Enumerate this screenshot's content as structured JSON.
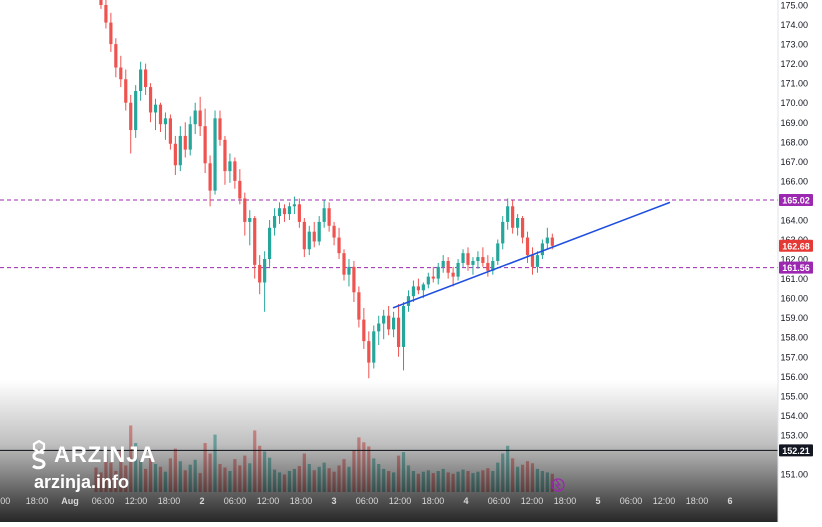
{
  "brand": {
    "name": "ARZINJA",
    "url": "arzinja.info",
    "logo_icon": "dollar-s-logo-icon"
  },
  "colors": {
    "up": "#26a69a",
    "down": "#ef5350",
    "trendline": "#1f4fe0",
    "resistance": "#9c27b0",
    "price_badge": "#e53935",
    "black_line": "#131722",
    "fade_bottom": "#5a5a5a"
  },
  "chart_data": {
    "type": "candlestick",
    "title": "",
    "xlabel": "",
    "ylabel": "",
    "ylim": [
      150.6,
      175.3
    ],
    "y_ticks": [
      "175.00",
      "174.00",
      "173.00",
      "172.00",
      "171.00",
      "170.00",
      "169.00",
      "168.00",
      "167.00",
      "166.00",
      "164.00",
      "163.00",
      "162.00",
      "161.00",
      "160.00",
      "159.00",
      "158.00",
      "157.00",
      "156.00",
      "155.00",
      "154.00",
      "153.00",
      "151.00"
    ],
    "x_ticks": [
      ":00",
      "18:00",
      "Aug",
      "06:00",
      "12:00",
      "18:00",
      "2",
      "06:00",
      "12:00",
      "18:00",
      "3",
      "06:00",
      "12:00",
      "18:00",
      "4",
      "06:00",
      "12:00",
      "18:00",
      "5",
      "06:00",
      "12:00",
      "18:00",
      "6"
    ],
    "price_labels": [
      {
        "text": "165.02",
        "value": 165.02,
        "color": "#9c27b0"
      },
      {
        "text": "162.68",
        "value": 162.68,
        "color": "#e53935"
      },
      {
        "text": "161.56",
        "value": 161.56,
        "color": "#9c27b0"
      },
      {
        "text": "152.21",
        "value": 152.21,
        "color": "#131722"
      }
    ],
    "horizontal_lines": [
      {
        "value": 165.02,
        "style": "dashed",
        "color": "#9c27b0"
      },
      {
        "value": 161.56,
        "style": "dashed",
        "color": "#9c27b0"
      },
      {
        "value": 152.21,
        "style": "solid",
        "color": "#131722"
      }
    ],
    "trendline": {
      "from": {
        "x": "3 06:00",
        "y": 159.5
      },
      "to": {
        "x": "5 00:00",
        "y": 164.9
      }
    },
    "ohlc": [
      [
        176.0,
        176.4,
        175.5,
        175.9
      ],
      [
        175.9,
        176.0,
        174.8,
        175.0
      ],
      [
        175.0,
        175.4,
        173.8,
        174.1
      ],
      [
        174.1,
        174.6,
        172.6,
        173.0
      ],
      [
        173.0,
        173.3,
        171.3,
        171.8
      ],
      [
        171.8,
        172.4,
        170.8,
        171.2
      ],
      [
        171.2,
        171.7,
        169.6,
        170.0
      ],
      [
        170.0,
        170.4,
        167.4,
        168.6
      ],
      [
        168.6,
        170.9,
        168.2,
        170.6
      ],
      [
        170.6,
        172.1,
        170.1,
        171.7
      ],
      [
        171.7,
        172.0,
        170.4,
        170.8
      ],
      [
        170.8,
        171.0,
        169.0,
        169.5
      ],
      [
        169.5,
        170.2,
        168.6,
        169.9
      ],
      [
        169.9,
        170.0,
        168.5,
        168.9
      ],
      [
        168.9,
        169.5,
        168.1,
        169.2
      ],
      [
        169.2,
        169.4,
        167.6,
        167.9
      ],
      [
        167.9,
        168.3,
        166.3,
        166.8
      ],
      [
        166.8,
        168.8,
        166.5,
        168.3
      ],
      [
        168.3,
        169.0,
        167.2,
        167.6
      ],
      [
        167.6,
        169.3,
        167.3,
        168.9
      ],
      [
        168.9,
        170.0,
        168.4,
        169.6
      ],
      [
        169.6,
        170.3,
        168.3,
        168.8
      ],
      [
        168.8,
        169.7,
        166.4,
        166.9
      ],
      [
        166.9,
        167.3,
        164.7,
        165.5
      ],
      [
        165.5,
        169.6,
        165.3,
        169.2
      ],
      [
        169.2,
        169.6,
        167.8,
        168.1
      ],
      [
        168.1,
        168.3,
        165.8,
        166.5
      ],
      [
        166.5,
        167.4,
        165.9,
        167.0
      ],
      [
        167.0,
        167.2,
        165.6,
        166.0
      ],
      [
        166.0,
        166.6,
        164.8,
        165.1
      ],
      [
        165.1,
        165.4,
        163.2,
        163.9
      ],
      [
        163.9,
        164.5,
        162.7,
        164.1
      ],
      [
        164.1,
        164.2,
        161.0,
        161.7
      ],
      [
        161.7,
        162.2,
        160.2,
        160.8
      ],
      [
        160.8,
        162.4,
        159.3,
        162.0
      ],
      [
        162.0,
        164.0,
        161.6,
        163.6
      ],
      [
        163.6,
        164.6,
        163.2,
        164.2
      ],
      [
        164.2,
        164.9,
        163.8,
        164.6
      ],
      [
        164.6,
        164.8,
        163.9,
        164.3
      ],
      [
        164.3,
        164.9,
        164.0,
        164.7
      ],
      [
        164.7,
        165.2,
        164.3,
        164.8
      ],
      [
        164.8,
        165.1,
        163.6,
        163.9
      ],
      [
        163.9,
        164.1,
        162.1,
        162.5
      ],
      [
        162.5,
        163.7,
        162.2,
        163.4
      ],
      [
        163.4,
        163.9,
        162.6,
        162.9
      ],
      [
        162.9,
        164.2,
        162.7,
        163.9
      ],
      [
        163.9,
        165.0,
        163.6,
        164.6
      ],
      [
        164.6,
        164.9,
        163.4,
        163.7
      ],
      [
        163.7,
        163.9,
        162.7,
        163.1
      ],
      [
        163.1,
        163.6,
        162.0,
        162.3
      ],
      [
        162.3,
        162.5,
        160.9,
        161.2
      ],
      [
        161.2,
        162.0,
        160.6,
        161.6
      ],
      [
        161.6,
        161.9,
        159.8,
        160.3
      ],
      [
        160.3,
        160.6,
        158.5,
        158.9
      ],
      [
        158.9,
        159.5,
        157.4,
        157.8
      ],
      [
        157.8,
        158.3,
        155.9,
        156.7
      ],
      [
        156.7,
        158.6,
        156.4,
        158.3
      ],
      [
        158.3,
        159.1,
        157.6,
        158.7
      ],
      [
        158.7,
        159.4,
        157.9,
        159.1
      ],
      [
        159.1,
        159.6,
        158.1,
        158.4
      ],
      [
        158.4,
        159.3,
        158.0,
        159.0
      ],
      [
        159.0,
        159.7,
        157.0,
        157.5
      ],
      [
        157.5,
        159.8,
        156.3,
        159.6
      ],
      [
        159.6,
        160.4,
        159.3,
        160.1
      ],
      [
        160.1,
        160.9,
        159.8,
        160.6
      ],
      [
        160.6,
        161.0,
        160.2,
        160.4
      ],
      [
        160.4,
        160.8,
        160.0,
        160.7
      ],
      [
        160.7,
        161.3,
        160.5,
        161.1
      ],
      [
        161.1,
        161.6,
        160.8,
        161.0
      ],
      [
        161.0,
        161.8,
        160.7,
        161.6
      ],
      [
        161.6,
        162.2,
        161.3,
        161.9
      ],
      [
        161.9,
        162.1,
        161.0,
        161.3
      ],
      [
        161.3,
        161.6,
        160.6,
        161.1
      ],
      [
        161.1,
        162.0,
        160.9,
        161.8
      ],
      [
        161.8,
        162.5,
        161.6,
        162.3
      ],
      [
        162.3,
        162.6,
        161.4,
        161.7
      ],
      [
        161.7,
        162.1,
        161.2,
        161.9
      ],
      [
        161.9,
        162.4,
        161.5,
        162.1
      ],
      [
        162.1,
        162.6,
        161.6,
        161.8
      ],
      [
        161.8,
        162.2,
        161.1,
        161.4
      ],
      [
        161.4,
        162.1,
        161.2,
        161.9
      ],
      [
        161.9,
        163.0,
        161.7,
        162.8
      ],
      [
        162.8,
        164.2,
        162.5,
        163.9
      ],
      [
        163.9,
        165.1,
        163.5,
        164.7
      ],
      [
        164.7,
        165.0,
        163.3,
        163.6
      ],
      [
        163.6,
        164.3,
        163.2,
        164.1
      ],
      [
        164.1,
        164.2,
        162.8,
        163.1
      ],
      [
        163.1,
        163.4,
        161.8,
        162.2
      ],
      [
        162.2,
        162.6,
        161.2,
        161.6
      ],
      [
        161.6,
        162.4,
        161.3,
        162.2
      ],
      [
        162.2,
        163.0,
        162.0,
        162.8
      ],
      [
        162.8,
        163.6,
        162.5,
        163.1
      ],
      [
        163.1,
        163.3,
        162.5,
        162.68
      ]
    ],
    "volume": [
      0.35,
      0.28,
      0.55,
      0.42,
      0.3,
      0.6,
      0.38,
      0.95,
      0.7,
      0.45,
      0.33,
      0.52,
      0.4,
      0.36,
      0.29,
      0.48,
      0.62,
      0.44,
      0.31,
      0.39,
      0.46,
      0.27,
      0.7,
      0.55,
      0.82,
      0.4,
      0.35,
      0.3,
      0.47,
      0.38,
      0.52,
      0.41,
      0.88,
      0.66,
      0.58,
      0.49,
      0.32,
      0.28,
      0.25,
      0.3,
      0.33,
      0.37,
      0.55,
      0.4,
      0.31,
      0.36,
      0.42,
      0.34,
      0.29,
      0.38,
      0.47,
      0.36,
      0.6,
      0.78,
      0.71,
      0.65,
      0.48,
      0.4,
      0.33,
      0.3,
      0.28,
      0.52,
      0.57,
      0.38,
      0.3,
      0.26,
      0.29,
      0.31,
      0.27,
      0.3,
      0.33,
      0.28,
      0.26,
      0.29,
      0.32,
      0.3,
      0.27,
      0.29,
      0.31,
      0.34,
      0.3,
      0.42,
      0.55,
      0.66,
      0.48,
      0.36,
      0.39,
      0.44,
      0.41,
      0.33,
      0.3,
      0.28,
      0.26
    ]
  }
}
